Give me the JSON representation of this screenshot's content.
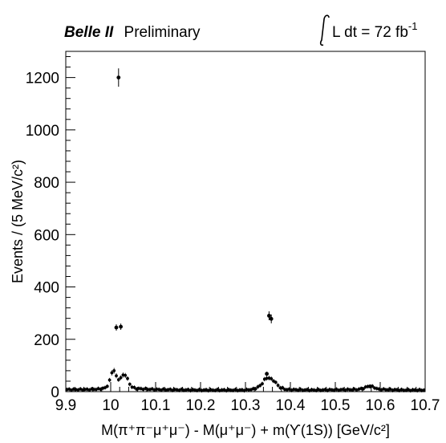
{
  "header": {
    "experiment": "Belle II",
    "status": "Preliminary",
    "luminosity_prefix": "L dt = 72 fb",
    "luminosity_exponent": "-1"
  },
  "chart_data": {
    "type": "scatter",
    "xlabel": "M(π⁺π⁻μ⁺μ⁻) - M(μ⁺μ⁻) + m(ϒ(1S)) [GeV/c²]",
    "ylabel": "Events / (5 MeV/c²)",
    "xlim": [
      9.9,
      10.7
    ],
    "ylim": [
      0,
      1300
    ],
    "x_ticks": [
      9.9,
      10.0,
      10.1,
      10.2,
      10.3,
      10.4,
      10.5,
      10.6,
      10.7
    ],
    "x_tick_labels": [
      "9.9",
      "10",
      "10.1",
      "10.2",
      "10.3",
      "10.4",
      "10.5",
      "10.6",
      "10.7"
    ],
    "y_ticks": [
      0,
      200,
      400,
      600,
      800,
      1000,
      1200
    ],
    "y_tick_labels": [
      "0",
      "200",
      "400",
      "600",
      "800",
      "1000",
      "1200"
    ],
    "grid": false,
    "series": [
      {
        "marker": "dot",
        "color": "#000000",
        "points": [
          {
            "x": 10.0125,
            "y": 245,
            "err": 12
          },
          {
            "x": 10.0175,
            "y": 1200,
            "err": 35
          },
          {
            "x": 10.0225,
            "y": 248,
            "err": 12
          },
          {
            "x": 10.3525,
            "y": 290,
            "err": 17
          },
          {
            "x": 10.3575,
            "y": 278,
            "err": 17
          },
          {
            "x": 10.3475,
            "y": 68,
            "err": 8
          },
          {
            "x": 10.5775,
            "y": 20,
            "err": 5
          }
        ],
        "background_profile": [
          {
            "x": 9.9,
            "y": 8
          },
          {
            "x": 9.95,
            "y": 8
          },
          {
            "x": 9.975,
            "y": 10
          },
          {
            "x": 9.99,
            "y": 15
          },
          {
            "x": 9.995,
            "y": 30
          },
          {
            "x": 10.0,
            "y": 55
          },
          {
            "x": 10.005,
            "y": 90
          },
          {
            "x": 10.01,
            "y": 72
          },
          {
            "x": 10.015,
            "y": 45
          },
          {
            "x": 10.025,
            "y": 55
          },
          {
            "x": 10.03,
            "y": 70
          },
          {
            "x": 10.035,
            "y": 58
          },
          {
            "x": 10.04,
            "y": 38
          },
          {
            "x": 10.045,
            "y": 20
          },
          {
            "x": 10.055,
            "y": 12
          },
          {
            "x": 10.1,
            "y": 8
          },
          {
            "x": 10.2,
            "y": 6
          },
          {
            "x": 10.3,
            "y": 6
          },
          {
            "x": 10.32,
            "y": 10
          },
          {
            "x": 10.335,
            "y": 25
          },
          {
            "x": 10.342,
            "y": 45
          },
          {
            "x": 10.35,
            "y": 55
          },
          {
            "x": 10.365,
            "y": 40
          },
          {
            "x": 10.375,
            "y": 18
          },
          {
            "x": 10.39,
            "y": 8
          },
          {
            "x": 10.45,
            "y": 6
          },
          {
            "x": 10.55,
            "y": 8
          },
          {
            "x": 10.565,
            "y": 14
          },
          {
            "x": 10.575,
            "y": 22
          },
          {
            "x": 10.585,
            "y": 18
          },
          {
            "x": 10.595,
            "y": 9
          },
          {
            "x": 10.65,
            "y": 6
          },
          {
            "x": 10.7,
            "y": 6
          }
        ]
      }
    ]
  }
}
